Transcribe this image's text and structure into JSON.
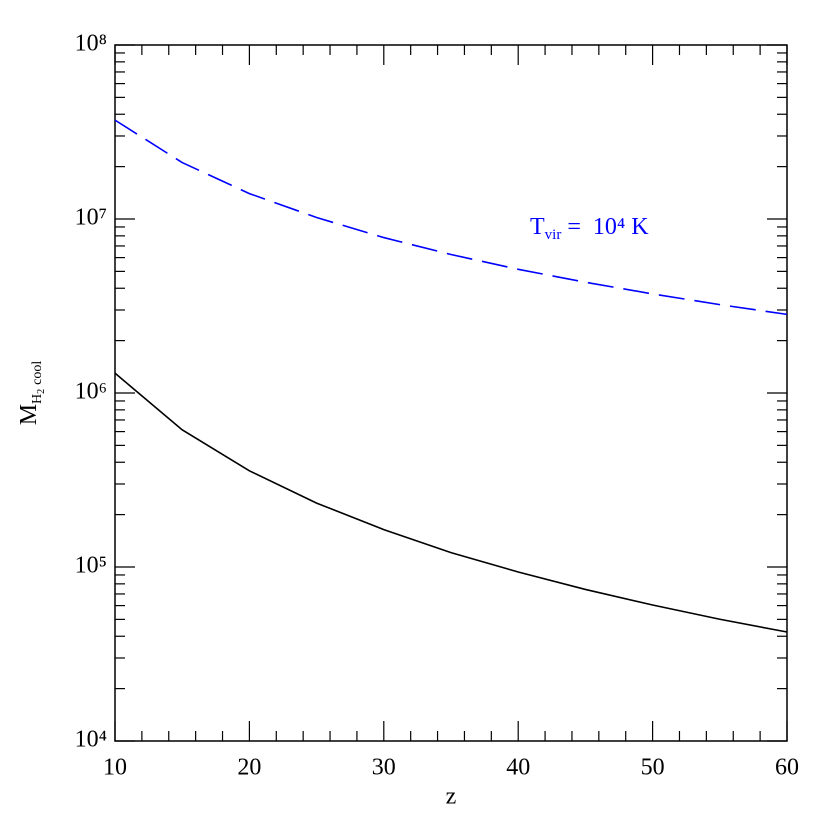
{
  "chart_data": {
    "type": "line",
    "x_label": "z",
    "y_label": {
      "main": "M",
      "sub": "H",
      "subsub": "2",
      "sub2": "cool"
    },
    "annotation": {
      "main": "T",
      "sub": "vir",
      "rest": " =  10⁴ K",
      "color": "#0000ff"
    },
    "x": [
      10,
      15,
      20,
      25,
      30,
      35,
      40,
      45,
      50,
      55,
      60
    ],
    "series": [
      {
        "color": "#000000",
        "dashed": false,
        "values": [
          1300000,
          614000,
          357000,
          233000,
          164000,
          121000,
          93600,
          74300,
          60500,
          50100,
          42300
        ]
      },
      {
        "color": "#0000ff",
        "dashed": true,
        "values": [
          37000000,
          21100000,
          14000000,
          10200000,
          7820000,
          6250000,
          5140000,
          4330000,
          3710000,
          3220000,
          2830000
        ]
      }
    ],
    "xlim": [
      10,
      60
    ],
    "xticks": [
      10,
      20,
      30,
      40,
      50,
      60
    ],
    "xminor_ticks": [
      12,
      14,
      16,
      18,
      22,
      24,
      26,
      28,
      32,
      34,
      36,
      38,
      42,
      44,
      46,
      48,
      52,
      54,
      56,
      58
    ],
    "ylim": [
      10000,
      100000000
    ],
    "log_y": true,
    "yticks": [
      {
        "value": 10000,
        "label": "10⁴"
      },
      {
        "value": 100000,
        "label": "10⁵"
      },
      {
        "value": 1000000,
        "label": "10⁶"
      },
      {
        "value": 10000000,
        "label": "10⁷"
      },
      {
        "value": 100000000,
        "label": "10⁸"
      }
    ],
    "yminor_ticks": [
      20000,
      30000,
      40000,
      50000,
      60000,
      70000,
      80000,
      90000,
      200000,
      300000,
      400000,
      500000,
      600000,
      700000,
      800000,
      900000,
      2000000,
      3000000,
      4000000,
      5000000,
      6000000,
      7000000,
      8000000,
      9000000,
      20000000,
      30000000,
      40000000,
      50000000,
      60000000,
      70000000,
      80000000,
      90000000
    ]
  }
}
